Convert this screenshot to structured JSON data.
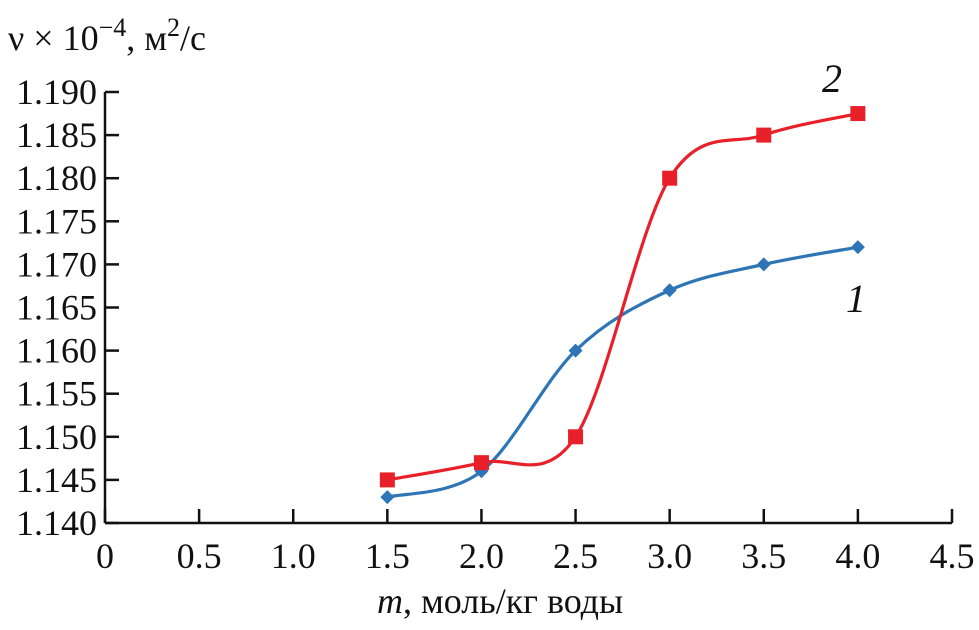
{
  "chart_data": {
    "type": "line",
    "title": "",
    "ylabel": "ν × 10⁻⁴, м²/с",
    "ylabel_parts": {
      "base": "ν × 10",
      "exp1": "−4",
      "mid": ", м",
      "exp2": "2",
      "tail": "/с"
    },
    "xlabel": "m, моль/кг воды",
    "xlabel_parts": {
      "var": "m",
      "rest": ", моль/кг воды"
    },
    "xlim": [
      0,
      4.5
    ],
    "ylim": [
      1.14,
      1.19
    ],
    "x_ticks": [
      "0",
      "0.5",
      "1.0",
      "1.5",
      "2.0",
      "2.5",
      "3.0",
      "3.5",
      "4.0",
      "4.5"
    ],
    "x_tick_values": [
      0,
      0.5,
      1.0,
      1.5,
      2.0,
      2.5,
      3.0,
      3.5,
      4.0,
      4.5
    ],
    "y_ticks": [
      "1.140",
      "1.145",
      "1.150",
      "1.155",
      "1.160",
      "1.165",
      "1.170",
      "1.175",
      "1.180",
      "1.185",
      "1.190"
    ],
    "y_tick_values": [
      1.14,
      1.145,
      1.15,
      1.155,
      1.16,
      1.165,
      1.17,
      1.175,
      1.18,
      1.185,
      1.19
    ],
    "grid": false,
    "legend": "none",
    "series": [
      {
        "name": "1",
        "color": "#2e75b6",
        "marker": "diamond",
        "x": [
          1.5,
          2.0,
          2.5,
          3.0,
          3.5,
          4.0
        ],
        "values": [
          1.143,
          1.146,
          1.16,
          1.167,
          1.17,
          1.172
        ]
      },
      {
        "name": "2",
        "color": "#e8202a",
        "marker": "square",
        "x": [
          1.5,
          2.0,
          2.5,
          3.0,
          3.5,
          4.0
        ],
        "values": [
          1.145,
          1.147,
          1.15,
          1.18,
          1.185,
          1.1875
        ]
      }
    ]
  }
}
